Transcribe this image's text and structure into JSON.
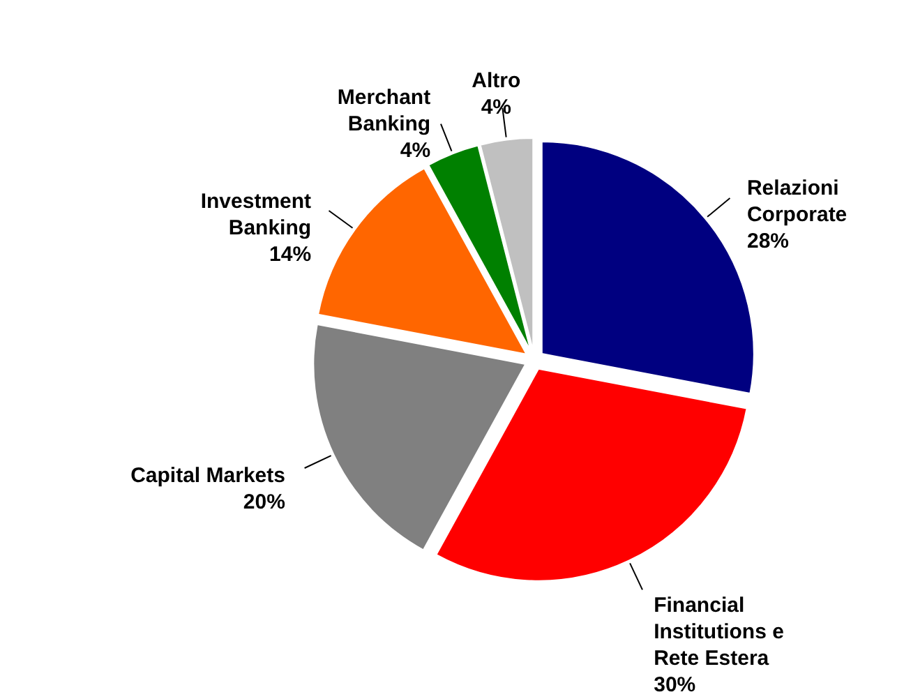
{
  "chart_data": {
    "type": "pie",
    "categories": [
      "Relazioni Corporate",
      "Financial Institutions e Rete Estera",
      "Capital Markets",
      "Investment Banking",
      "Merchant Banking",
      "Altro"
    ],
    "values": [
      28,
      30,
      20,
      14,
      4,
      4
    ],
    "colors": [
      "#000080",
      "#ff0000",
      "#808080",
      "#ff6600",
      "#008000",
      "#c0c0c0"
    ],
    "value_labels": [
      "28%",
      "30%",
      "20%",
      "14%",
      "4%",
      "4%"
    ]
  }
}
